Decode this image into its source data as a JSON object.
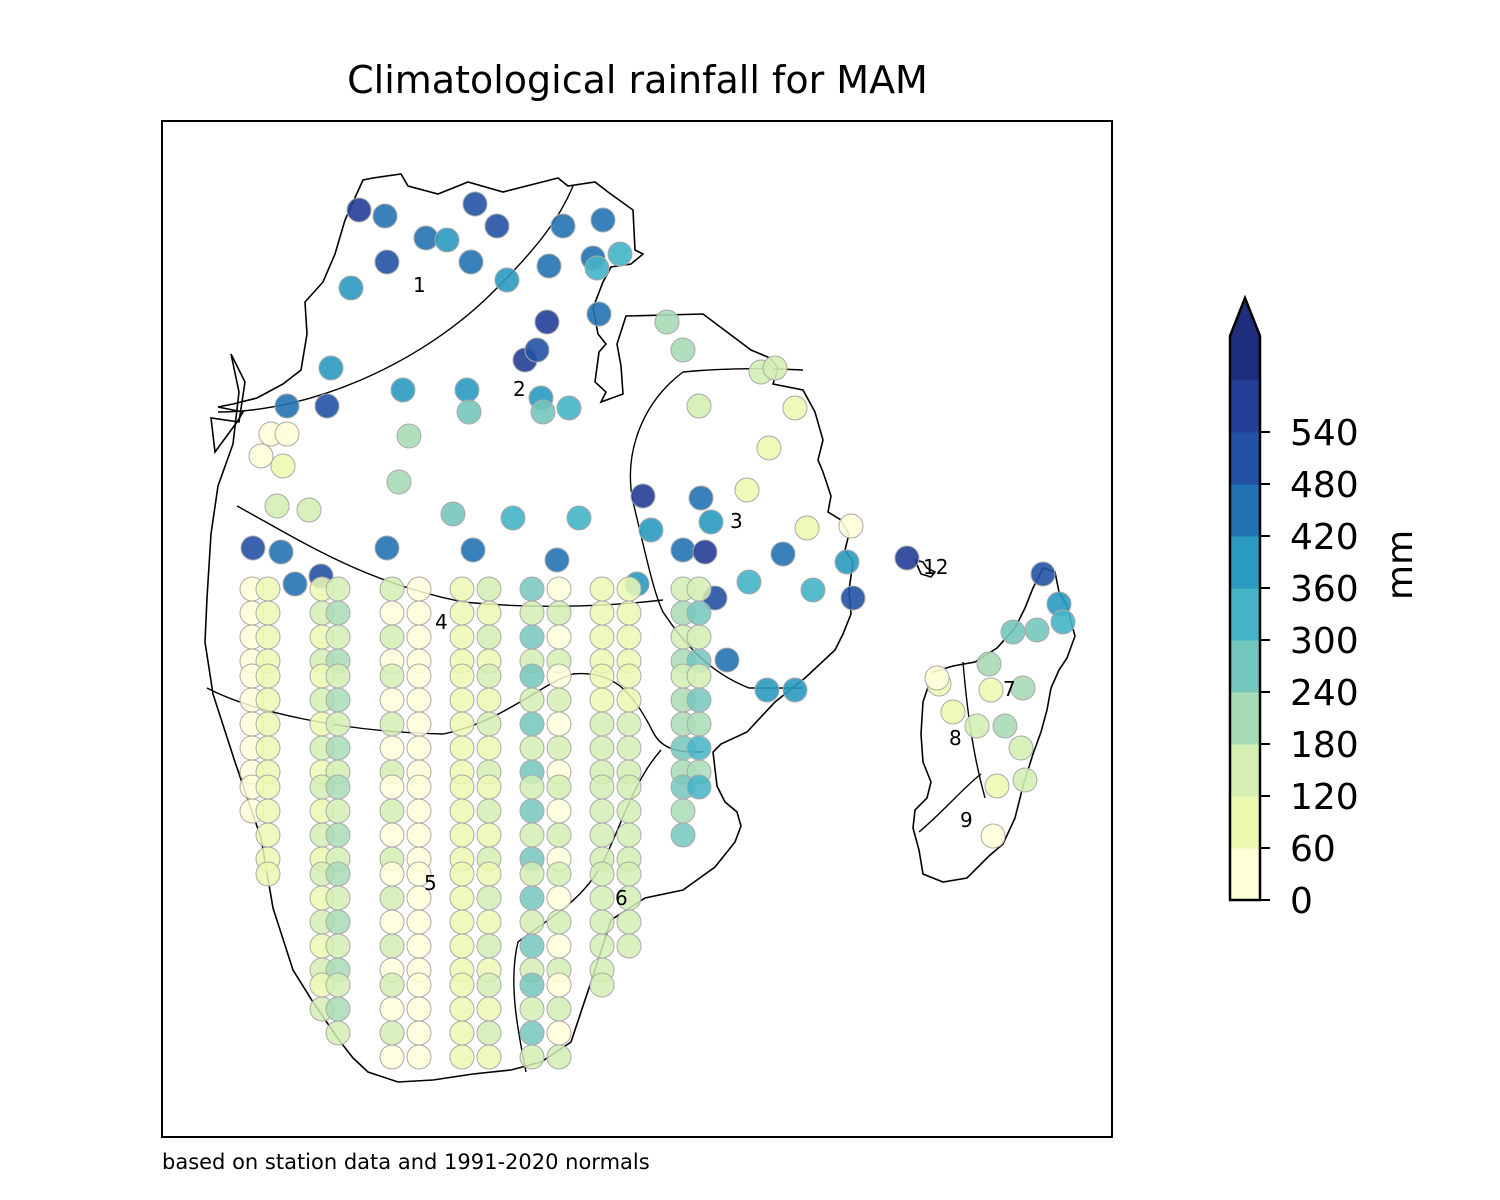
{
  "title": "Climatological rainfall for MAM",
  "caption": "based on station data and 1991-2020 normals",
  "colorbar": {
    "label": "mm",
    "ticks": [
      "0",
      "60",
      "120",
      "180",
      "240",
      "300",
      "360",
      "420",
      "480",
      "540"
    ],
    "bounds": [
      0,
      60,
      120,
      180,
      240,
      300,
      360,
      420,
      480,
      540,
      600
    ],
    "colors": [
      "#ffffd9",
      "#edf8b1",
      "#d4eeb4",
      "#a8dcb6",
      "#74c7bd",
      "#44b4c6",
      "#2b9ac1",
      "#2273b4",
      "#2352a4",
      "#233e96",
      "#1f2e7c"
    ],
    "extend": "max"
  },
  "region_labels": [
    "1",
    "2",
    "3",
    "4",
    "5",
    "6",
    "7",
    "8",
    "9",
    "12"
  ],
  "station_rainfall_mm": [
    540,
    450,
    430,
    410,
    480,
    500,
    470,
    440,
    520,
    450,
    430,
    460,
    400,
    380,
    540,
    330,
    420,
    300,
    370,
    490,
    460,
    410,
    360,
    560,
    500,
    380,
    330,
    290,
    270,
    220,
    190,
    180,
    150,
    140,
    120,
    110,
    90,
    70,
    60,
    50,
    40,
    30,
    20,
    100,
    130,
    160,
    200,
    240,
    310,
    350
  ]
}
